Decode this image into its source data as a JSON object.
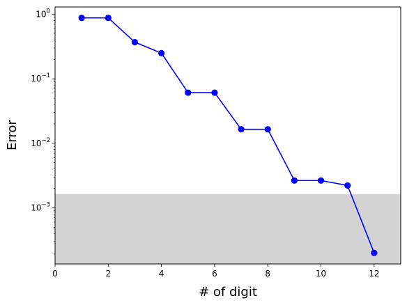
{
  "chart_data": {
    "type": "line",
    "title": "",
    "xlabel": "# of digit",
    "ylabel": "Error",
    "xlim": [
      0,
      13
    ],
    "ylim": [
      0.000135,
      1.3
    ],
    "yscale": "log",
    "grid": false,
    "x_ticks": [
      0,
      2,
      4,
      6,
      8,
      10,
      12
    ],
    "x_tick_labels": [
      "0",
      "2",
      "4",
      "6",
      "8",
      "10",
      "12"
    ],
    "y_ticks": [
      1,
      0.1,
      0.01,
      0.001
    ],
    "y_tick_labels": [
      {
        "base": "10",
        "exp": "0"
      },
      {
        "base": "10",
        "exp": "−1"
      },
      {
        "base": "10",
        "exp": "−2"
      },
      {
        "base": "10",
        "exp": "−3"
      }
    ],
    "series": [
      {
        "color": "#0000ff",
        "marker": "circle",
        "x": [
          1,
          2,
          3,
          4,
          5,
          6,
          7,
          8,
          9,
          10,
          11,
          12
        ],
        "y": [
          0.88,
          0.88,
          0.37,
          0.25,
          0.061,
          0.061,
          0.0165,
          0.0165,
          0.00265,
          0.00265,
          0.00222,
          0.0002
        ]
      }
    ],
    "shaded_region": {
      "y_min": 0.000135,
      "y_max": 0.00163,
      "color": "#d3d3d3"
    }
  }
}
